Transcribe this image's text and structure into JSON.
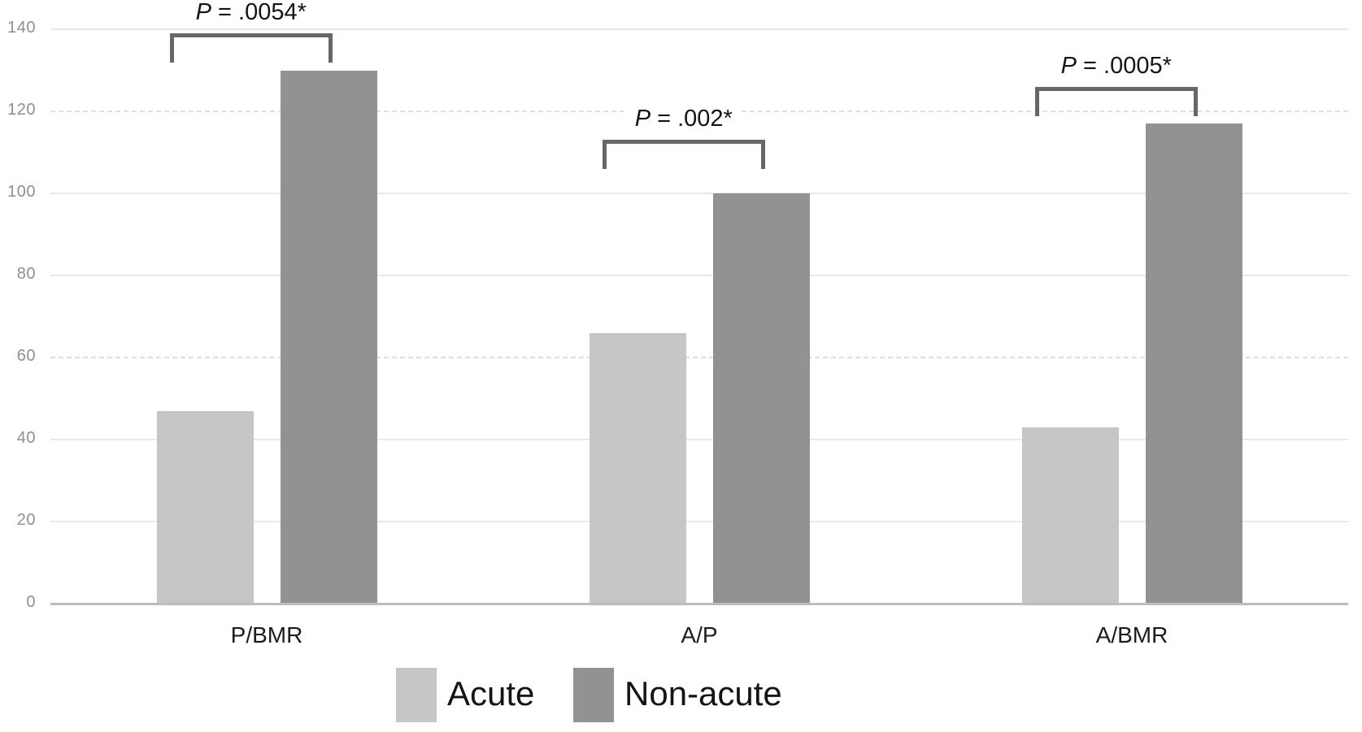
{
  "chart_data": {
    "type": "bar",
    "title": "",
    "xlabel": "",
    "ylabel": "",
    "categories": [
      "P/BMR",
      "A/P",
      "A/BMR"
    ],
    "series": [
      {
        "name": "Acute",
        "color": "#c6c6c6",
        "values": [
          47,
          66,
          43
        ]
      },
      {
        "name": "Non-acute",
        "color": "#929292",
        "values": [
          130,
          100,
          117
        ]
      }
    ],
    "ylim": [
      0,
      140
    ],
    "yticks": [
      0,
      20,
      40,
      60,
      80,
      100,
      120,
      140
    ],
    "dashed_gridlines": [
      60,
      120
    ],
    "grid": true,
    "legend_position": "bottom",
    "annotations": [
      {
        "category": "P/BMR",
        "label": "P = .0054*",
        "bracket_y": 139
      },
      {
        "category": "A/P",
        "label": "P = .002*",
        "bracket_y": 113
      },
      {
        "category": "A/BMR",
        "label": "P = .0005*",
        "bracket_y": 126
      }
    ]
  },
  "colors": {
    "background": "#ffffff",
    "gridline": "#e8e8e8",
    "axis_line": "#bdbdbd",
    "tick_label": "#8f8f8f",
    "category_label": "#1c1c1c",
    "annotation_text": "#141414",
    "bracket": "#676767",
    "series_acute": "#c6c6c6",
    "series_non_acute": "#929292"
  }
}
